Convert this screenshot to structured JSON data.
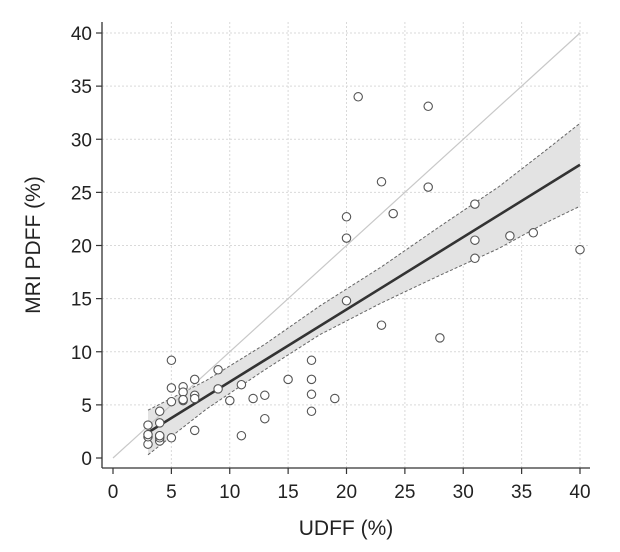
{
  "chart_data": {
    "type": "scatter",
    "xlabel": "UDFF (%)",
    "ylabel": "MRI PDFF (%)",
    "xlim": [
      0,
      40
    ],
    "ylim": [
      0,
      40
    ],
    "xticks": [
      0,
      5,
      10,
      15,
      20,
      25,
      30,
      35,
      40
    ],
    "yticks": [
      0,
      5,
      10,
      15,
      20,
      25,
      30,
      35,
      40
    ],
    "grid": true,
    "identity_line": {
      "x": [
        0,
        40
      ],
      "y": [
        0,
        40
      ]
    },
    "regression_line": {
      "x": [
        3,
        40
      ],
      "y": [
        2.4,
        27.6
      ]
    },
    "confidence_band": {
      "x": [
        3,
        8,
        13,
        17.7,
        23,
        28,
        33,
        37,
        40
      ],
      "lower": [
        0.3,
        4.6,
        8.3,
        11.6,
        14.6,
        17.2,
        19.7,
        22.1,
        23.7
      ],
      "upper": [
        4.5,
        7.3,
        10.7,
        14.3,
        18.0,
        21.8,
        25.5,
        28.9,
        31.5
      ]
    },
    "points": {
      "x": [
        3,
        3,
        3,
        3,
        4,
        4,
        4,
        4,
        4,
        4,
        5,
        5,
        5,
        5,
        6,
        6,
        6,
        6,
        7,
        7,
        7,
        7,
        9,
        9,
        10,
        11,
        11,
        12,
        13,
        13,
        15,
        17,
        17,
        17,
        17,
        19,
        20,
        20,
        20,
        21,
        23,
        23,
        24,
        27,
        27,
        28,
        31,
        31,
        31,
        34,
        36,
        40
      ],
      "y": [
        1.3,
        2.0,
        2.2,
        3.1,
        1.6,
        1.9,
        2.1,
        3.3,
        4.4,
        2.1,
        9.2,
        6.6,
        5.3,
        1.9,
        6.7,
        6.2,
        5.4,
        5.5,
        7.4,
        5.9,
        5.6,
        2.6,
        8.3,
        6.5,
        5.4,
        6.9,
        2.1,
        5.6,
        5.9,
        3.7,
        7.4,
        9.2,
        7.4,
        6.0,
        4.4,
        5.6,
        22.7,
        20.7,
        14.8,
        34.0,
        26.0,
        12.5,
        23.0,
        33.1,
        25.5,
        11.3,
        23.9,
        20.5,
        18.8,
        20.9,
        21.2,
        19.6
      ]
    }
  }
}
